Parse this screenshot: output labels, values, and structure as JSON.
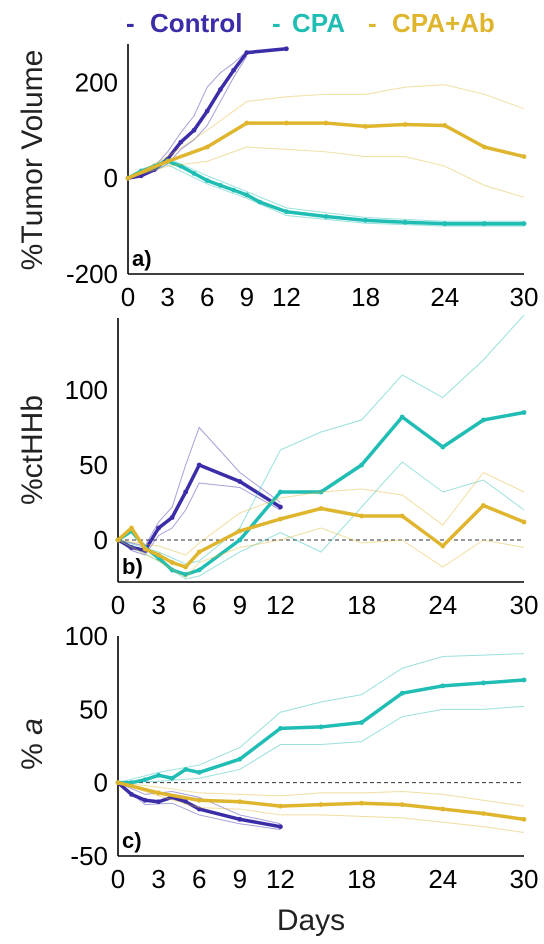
{
  "legend": [
    {
      "dash": "-",
      "label": "Control",
      "color": "#3b2ca8"
    },
    {
      "dash": "-",
      "label": "CPA",
      "color": "#1fbdb3"
    },
    {
      "dash": "-",
      "label": "CPA+Ab",
      "color": "#dfb52e"
    }
  ],
  "chart_data": [
    {
      "type": "line",
      "panel_label": "a)",
      "ylabel": "%Tumor Volume",
      "xlabel": "",
      "xlim": [
        0,
        30
      ],
      "ylim": [
        -200,
        280
      ],
      "xticks": [
        "0",
        "3",
        "6",
        "9",
        "12",
        "18",
        "24",
        "30"
      ],
      "yticks": [
        "-200",
        "0",
        "200"
      ],
      "zero_line": false,
      "series": [
        {
          "name": "Control",
          "color": "#3b2ca8",
          "x": [
            0,
            1,
            2,
            3,
            4,
            5,
            6,
            7,
            8,
            9,
            12
          ],
          "y": [
            0,
            5,
            18,
            40,
            75,
            100,
            140,
            185,
            225,
            262,
            270
          ],
          "bounds": [
            {
              "x": [
                0,
                1,
                2,
                3,
                4,
                5,
                6,
                7,
                8,
                9
              ],
              "y": [
                0,
                8,
                24,
                55,
                95,
                130,
                190,
                220,
                240,
                265
              ]
            },
            {
              "x": [
                0,
                1,
                2,
                3,
                4,
                5,
                6,
                7,
                8,
                9
              ],
              "y": [
                0,
                3,
                14,
                30,
                60,
                80,
                110,
                160,
                210,
                255
              ]
            }
          ]
        },
        {
          "name": "CPA",
          "color": "#1fbdb3",
          "x": [
            0,
            1,
            2,
            3,
            4,
            5,
            6,
            7,
            8,
            9,
            10,
            12,
            15,
            18,
            21,
            24,
            27,
            30
          ],
          "y": [
            0,
            15,
            25,
            35,
            25,
            10,
            -5,
            -15,
            -25,
            -35,
            -50,
            -70,
            -80,
            -88,
            -92,
            -95,
            -95,
            -95
          ],
          "bounds": [
            {
              "x": [
                0,
                3,
                6,
                9,
                12,
                18,
                24,
                30
              ],
              "y": [
                0,
                42,
                5,
                -28,
                -62,
                -82,
                -90,
                -90
              ]
            },
            {
              "x": [
                0,
                3,
                6,
                9,
                12,
                18,
                24,
                30
              ],
              "y": [
                0,
                28,
                -12,
                -42,
                -78,
                -94,
                -100,
                -100
              ]
            }
          ]
        },
        {
          "name": "CPA+Ab",
          "color": "#dfb52e",
          "x": [
            0,
            3,
            6,
            9,
            12,
            15,
            18,
            21,
            24,
            27,
            30
          ],
          "y": [
            0,
            35,
            65,
            115,
            115,
            115,
            108,
            112,
            110,
            65,
            45
          ],
          "bounds": [
            {
              "x": [
                0,
                3,
                6,
                9,
                12,
                15,
                18,
                21,
                24,
                27,
                30
              ],
              "y": [
                0,
                45,
                100,
                160,
                170,
                175,
                175,
                190,
                195,
                175,
                145
              ]
            },
            {
              "x": [
                0,
                3,
                6,
                9,
                12,
                15,
                18,
                21,
                24,
                27,
                30
              ],
              "y": [
                0,
                25,
                35,
                65,
                60,
                55,
                45,
                45,
                25,
                -15,
                -40
              ]
            }
          ]
        }
      ]
    },
    {
      "type": "line",
      "panel_label": "b)",
      "ylabel": "%ctHHb",
      "xlabel": "",
      "xlim": [
        0,
        30
      ],
      "ylim": [
        -28,
        148
      ],
      "xticks": [
        "0",
        "3",
        "6",
        "9",
        "12",
        "18",
        "24",
        "30"
      ],
      "yticks": [
        "0",
        "50",
        "100"
      ],
      "zero_line": true,
      "series": [
        {
          "name": "Control",
          "color": "#3b2ca8",
          "x": [
            0,
            1,
            2,
            3,
            4,
            5,
            6,
            9,
            12
          ],
          "y": [
            0,
            -5,
            -7,
            8,
            15,
            32,
            50,
            39,
            22
          ],
          "bounds": [
            {
              "x": [
                0,
                1,
                2,
                3,
                4,
                5,
                6,
                9,
                12
              ],
              "y": [
                0,
                -2,
                -4,
                12,
                22,
                50,
                75,
                45,
                25
              ]
            },
            {
              "x": [
                0,
                1,
                2,
                3,
                4,
                5,
                6,
                9,
                12
              ],
              "y": [
                0,
                -7,
                -10,
                3,
                8,
                20,
                38,
                35,
                20
              ]
            }
          ]
        },
        {
          "name": "CPA",
          "color": "#1fbdb3",
          "x": [
            0,
            1,
            2,
            3,
            4,
            5,
            6,
            9,
            12,
            15,
            18,
            21,
            24,
            27,
            30
          ],
          "y": [
            0,
            6,
            -5,
            -12,
            -20,
            -23,
            -20,
            0,
            32,
            32,
            50,
            82,
            62,
            80,
            85
          ],
          "bounds": [
            {
              "x": [
                0,
                3,
                5,
                6,
                9,
                12,
                15,
                18,
                21,
                24,
                27,
                30
              ],
              "y": [
                0,
                -8,
                -16,
                -14,
                8,
                60,
                72,
                80,
                110,
                95,
                120,
                150
              ]
            },
            {
              "x": [
                0,
                3,
                5,
                6,
                9,
                12,
                15,
                18,
                21,
                24,
                27,
                30
              ],
              "y": [
                0,
                -14,
                -26,
                -24,
                -8,
                5,
                -8,
                22,
                52,
                32,
                40,
                20
              ]
            }
          ]
        },
        {
          "name": "CPA+Ab",
          "color": "#dfb52e",
          "x": [
            0,
            1,
            2,
            3,
            4,
            5,
            6,
            9,
            12,
            15,
            18,
            21,
            24,
            27,
            30
          ],
          "y": [
            0,
            8,
            -6,
            -10,
            -15,
            -18,
            -8,
            6,
            14,
            21,
            16,
            16,
            -4,
            23,
            12
          ],
          "bounds": [
            {
              "x": [
                0,
                3,
                5,
                6,
                9,
                12,
                15,
                18,
                21,
                24,
                27,
                30
              ],
              "y": [
                0,
                -4,
                -10,
                -2,
                18,
                28,
                32,
                34,
                30,
                10,
                45,
                32
              ]
            },
            {
              "x": [
                0,
                3,
                5,
                6,
                9,
                12,
                15,
                18,
                21,
                24,
                27,
                30
              ],
              "y": [
                0,
                -14,
                -25,
                -15,
                -5,
                0,
                8,
                -2,
                0,
                -18,
                0,
                -5
              ]
            }
          ]
        }
      ]
    },
    {
      "type": "line",
      "panel_label": "c)",
      "ylabel": "% a",
      "xlabel": "Days",
      "xlim": [
        0,
        30
      ],
      "ylim": [
        -50,
        100
      ],
      "xticks": [
        "0",
        "3",
        "6",
        "9",
        "12",
        "18",
        "24",
        "30"
      ],
      "yticks": [
        "-50",
        "0",
        "50",
        "100"
      ],
      "zero_line": true,
      "series": [
        {
          "name": "Control",
          "color": "#3b2ca8",
          "x": [
            0,
            1,
            2,
            3,
            4,
            5,
            6,
            9,
            12
          ],
          "y": [
            0,
            -8,
            -12,
            -13,
            -10,
            -13,
            -18,
            -25,
            -30
          ],
          "bounds": [
            {
              "x": [
                0,
                2,
                4,
                6,
                9,
                12
              ],
              "y": [
                0,
                -8,
                -6,
                -10,
                -22,
                -28
              ]
            },
            {
              "x": [
                0,
                2,
                4,
                6,
                9,
                12
              ],
              "y": [
                0,
                -15,
                -14,
                -22,
                -28,
                -32
              ]
            }
          ]
        },
        {
          "name": "CPA",
          "color": "#1fbdb3",
          "x": [
            0,
            1,
            2,
            3,
            4,
            5,
            6,
            9,
            12,
            15,
            18,
            21,
            24,
            27,
            30
          ],
          "y": [
            0,
            0,
            2,
            5,
            3,
            9,
            7,
            16,
            37,
            38,
            41,
            61,
            66,
            68,
            70
          ],
          "bounds": [
            {
              "x": [
                0,
                3,
                6,
                9,
                12,
                15,
                18,
                21,
                24,
                27,
                30
              ],
              "y": [
                0,
                7,
                12,
                24,
                48,
                55,
                60,
                78,
                86,
                87,
                88
              ]
            },
            {
              "x": [
                0,
                3,
                6,
                9,
                12,
                15,
                18,
                21,
                24,
                27,
                30
              ],
              "y": [
                0,
                1,
                3,
                9,
                26,
                26,
                28,
                45,
                50,
                50,
                52
              ]
            }
          ]
        },
        {
          "name": "CPA+Ab",
          "color": "#dfb52e",
          "x": [
            0,
            3,
            6,
            9,
            12,
            15,
            18,
            21,
            24,
            27,
            30
          ],
          "y": [
            0,
            -7,
            -12,
            -13,
            -16,
            -15,
            -14,
            -15,
            -18,
            -21,
            -25
          ],
          "bounds": [
            {
              "x": [
                0,
                3,
                6,
                9,
                12,
                15,
                18,
                21,
                24,
                27,
                30
              ],
              "y": [
                0,
                -3,
                -7,
                -8,
                -9,
                -7,
                -7,
                -6,
                -8,
                -12,
                -16
              ]
            },
            {
              "x": [
                0,
                3,
                6,
                9,
                12,
                15,
                18,
                21,
                24,
                27,
                30
              ],
              "y": [
                0,
                -9,
                -17,
                -18,
                -22,
                -22,
                -23,
                -24,
                -27,
                -30,
                -34
              ]
            }
          ]
        }
      ]
    }
  ]
}
